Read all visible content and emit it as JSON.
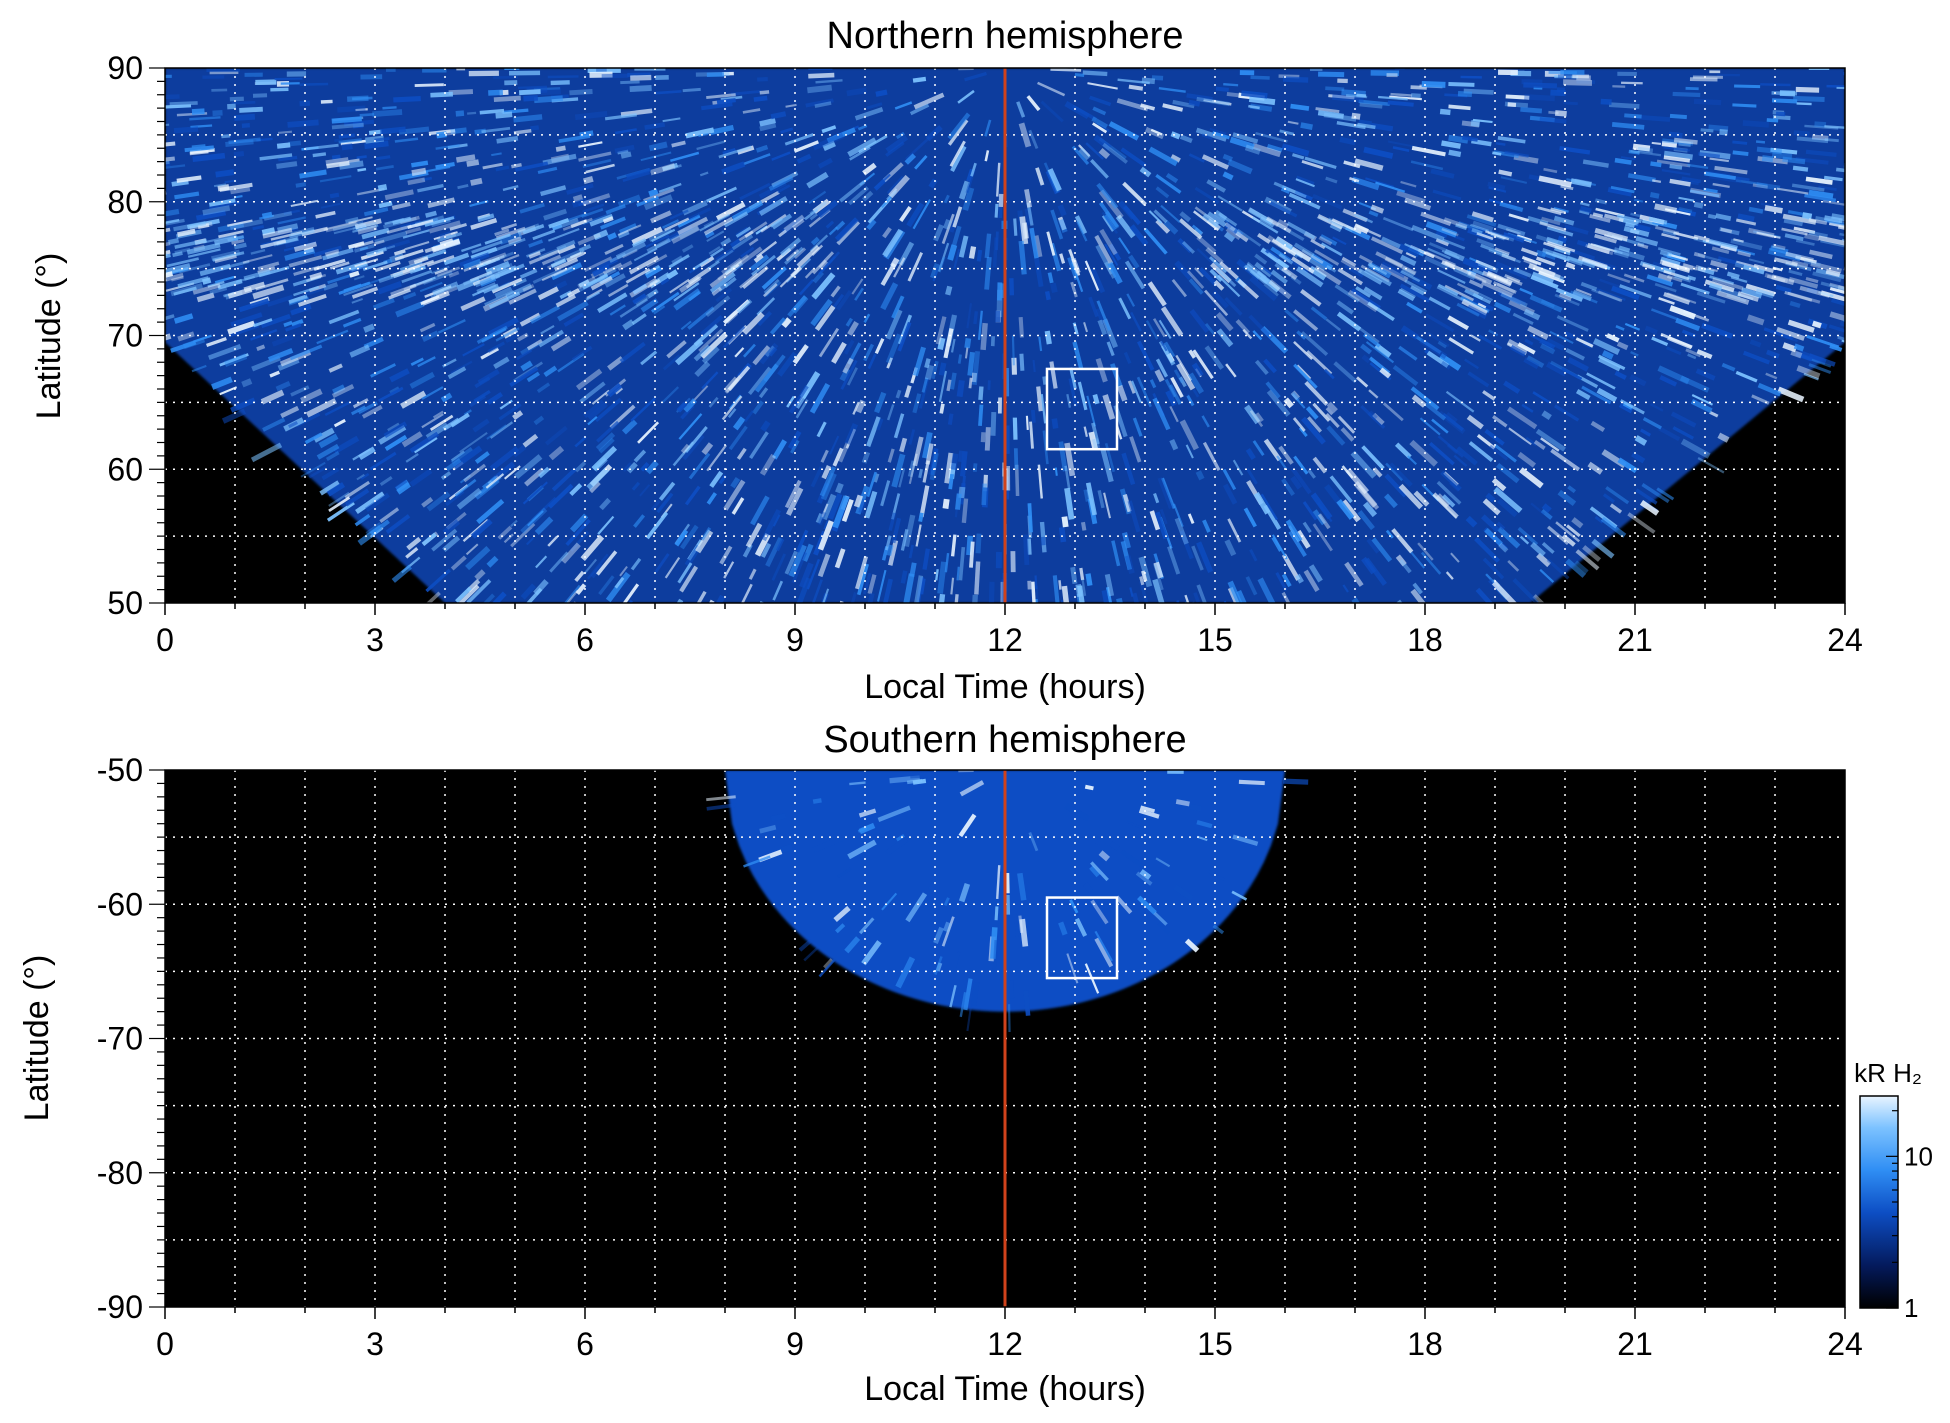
{
  "chart_data": [
    {
      "type": "heatmap",
      "title": "Northern hemisphere",
      "xlabel": "Local Time (hours)",
      "ylabel": "Latitude (°)",
      "xlim": [
        0,
        24
      ],
      "ylim": [
        50,
        90
      ],
      "x_ticks": [
        0,
        3,
        6,
        9,
        12,
        15,
        18,
        21,
        24
      ],
      "x_tick_labels": [
        "0",
        "3",
        "6",
        "9",
        "12",
        "15",
        "18",
        "21",
        "24"
      ],
      "y_ticks": [
        50,
        60,
        70,
        80,
        90
      ],
      "y_tick_labels": [
        "50",
        "60",
        "70",
        "80",
        "90"
      ],
      "grid": true,
      "noon_line_x": 12,
      "box": {
        "x": [
          12.6,
          13.6
        ],
        "y": [
          61.5,
          67.5
        ]
      },
      "coverage": "covered for latitude above the night-side edge; near-full coverage above ~70°, narrowing to LT 4–19.5 at 50°",
      "colors": {
        "noon_line": "#d0421b",
        "box": "#ffffff",
        "grid": "#ffffff"
      }
    },
    {
      "type": "heatmap",
      "title": "Southern hemisphere",
      "xlabel": "Local Time (hours)",
      "ylabel": "Latitude (°)",
      "xlim": [
        0,
        24
      ],
      "ylim": [
        -90,
        -50
      ],
      "x_ticks": [
        0,
        3,
        6,
        9,
        12,
        15,
        18,
        21,
        24
      ],
      "x_tick_labels": [
        "0",
        "3",
        "6",
        "9",
        "12",
        "15",
        "18",
        "21",
        "24"
      ],
      "y_ticks": [
        -90,
        -80,
        -70,
        -60,
        -50
      ],
      "y_tick_labels": [
        "-90",
        "-80",
        "-70",
        "-60",
        "-50"
      ],
      "grid": true,
      "noon_line_x": 12,
      "box": {
        "x": [
          12.6,
          13.6
        ],
        "y": [
          -65.5,
          -59.5
        ]
      },
      "coverage": "coverage only between LT ~8 and ~16, from -50° down to about -68° near noon",
      "colors": {
        "noon_line": "#d0421b",
        "box": "#ffffff",
        "grid": "#ffffff"
      }
    }
  ],
  "colorbar": {
    "label": "kR H₂",
    "scale": "log",
    "range": [
      1,
      25
    ],
    "ticks": [
      1,
      10
    ],
    "tick_labels": [
      "1",
      "10"
    ],
    "colors": [
      "#000000",
      "#041a5c",
      "#0d4ec4",
      "#2f8ef4",
      "#7cc2ff",
      "#e8f4ff"
    ]
  }
}
